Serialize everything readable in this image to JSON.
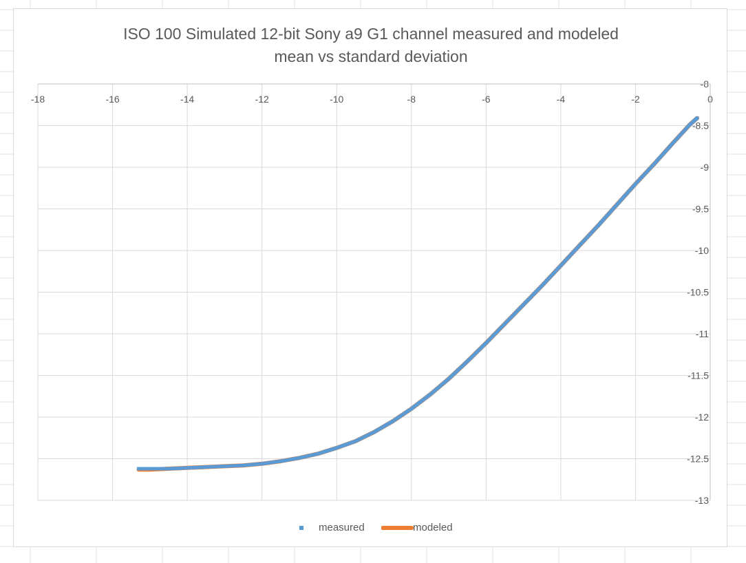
{
  "chart_data": {
    "type": "scatter",
    "title_line1": "ISO 100 Simulated 12-bit Sony a9 G1 channel measured and modeled",
    "title_line2": "mean vs standard deviation",
    "xlabel": "",
    "ylabel": "",
    "xlim": [
      -18,
      0
    ],
    "ylim": [
      -13,
      -8
    ],
    "x_ticks": [
      "-18",
      "-16",
      "-14",
      "-12",
      "-10",
      "-8",
      "-6",
      "-4",
      "-2",
      "0"
    ],
    "y_ticks": [
      "-8",
      "-8.5",
      "-9",
      "-9.5",
      "-10",
      "-10.5",
      "-11",
      "-11.5",
      "-12",
      "-12.5",
      "-13"
    ],
    "x_axis_position": "top",
    "y_axis_position": "right",
    "grid": true,
    "legend_position": "bottom",
    "series": [
      {
        "name": "measured",
        "style": "markers",
        "color": "#5b9bd5",
        "x": [
          -15.3,
          -15.0,
          -14.5,
          -14.0,
          -13.5,
          -13.0,
          -12.5,
          -12.0,
          -11.5,
          -11.0,
          -10.5,
          -10.0,
          -9.5,
          -9.0,
          -8.5,
          -8.0,
          -7.5,
          -7.0,
          -6.5,
          -6.0,
          -5.5,
          -5.0,
          -4.5,
          -4.0,
          -3.5,
          -3.0,
          -2.5,
          -2.0,
          -1.5,
          -1.0,
          -0.55,
          -0.35
        ],
        "y": [
          -12.62,
          -12.62,
          -12.62,
          -12.61,
          -12.6,
          -12.59,
          -12.58,
          -12.56,
          -12.53,
          -12.49,
          -12.44,
          -12.37,
          -12.29,
          -12.18,
          -12.05,
          -11.9,
          -11.73,
          -11.54,
          -11.33,
          -11.11,
          -10.88,
          -10.65,
          -10.42,
          -10.18,
          -9.94,
          -9.7,
          -9.45,
          -9.2,
          -8.96,
          -8.71,
          -8.49,
          -8.41
        ]
      },
      {
        "name": "modeled",
        "style": "line",
        "color": "#ed7d31",
        "x": [
          -15.3,
          -15.0,
          -14.5,
          -14.0,
          -13.5,
          -13.0,
          -12.5,
          -12.0,
          -11.5,
          -11.0,
          -10.5,
          -10.0,
          -9.5,
          -9.0,
          -8.5,
          -8.0,
          -7.5,
          -7.0,
          -6.5,
          -6.0,
          -5.5,
          -5.0,
          -4.5,
          -4.0,
          -3.5,
          -3.0,
          -2.5,
          -2.0,
          -1.5,
          -1.0,
          -0.55,
          -0.35
        ],
        "y": [
          -12.63,
          -12.63,
          -12.62,
          -12.61,
          -12.6,
          -12.59,
          -12.58,
          -12.56,
          -12.53,
          -12.49,
          -12.44,
          -12.37,
          -12.29,
          -12.18,
          -12.05,
          -11.9,
          -11.73,
          -11.54,
          -11.33,
          -11.11,
          -10.88,
          -10.65,
          -10.42,
          -10.18,
          -9.94,
          -9.7,
          -9.45,
          -9.2,
          -8.96,
          -8.71,
          -8.49,
          -8.41
        ]
      }
    ]
  }
}
